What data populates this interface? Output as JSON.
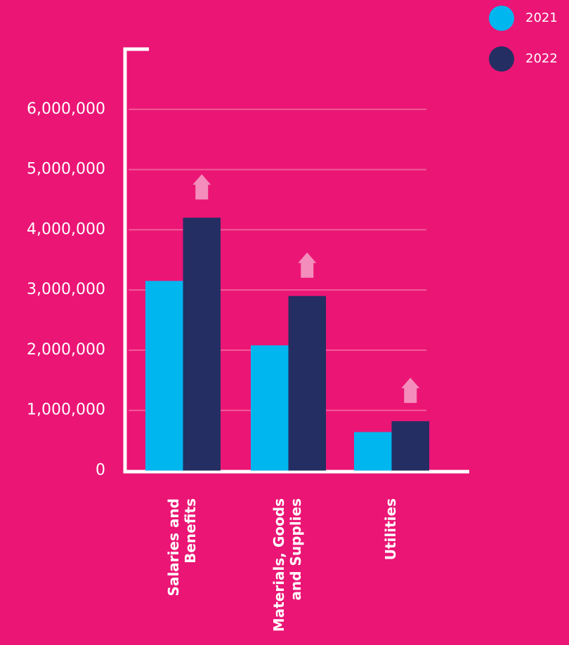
{
  "chart_data": {
    "type": "bar",
    "categories": [
      [
        "Salaries and",
        "Benefits"
      ],
      [
        "Materials, Goods",
        "and Supplies"
      ],
      [
        "Utilities"
      ]
    ],
    "series": [
      {
        "name": "2021",
        "color": "#00b6ee",
        "values": [
          3150000,
          2080000,
          640000
        ]
      },
      {
        "name": "2022",
        "color": "#242e63",
        "values": [
          4200000,
          2900000,
          820000
        ]
      }
    ],
    "ylim": [
      0,
      7000000
    ],
    "yticks": [
      0,
      {
        "value": 1000000,
        "label": "1,000,000"
      },
      {
        "value": 2000000,
        "label": "2,000,000"
      },
      {
        "value": 3000000,
        "label": "3,000,000"
      },
      {
        "value": 4000000,
        "label": "4,000,000"
      },
      {
        "value": 5000000,
        "label": "5,000,000"
      },
      {
        "value": 6000000,
        "label": "6,000,000"
      }
    ],
    "grid": true
  }
}
